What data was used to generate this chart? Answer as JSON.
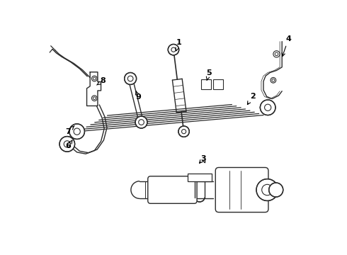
{
  "bg_color": "#ffffff",
  "lc": "#2a2a2a",
  "fig_width": 4.9,
  "fig_height": 3.6,
  "dpi": 100
}
